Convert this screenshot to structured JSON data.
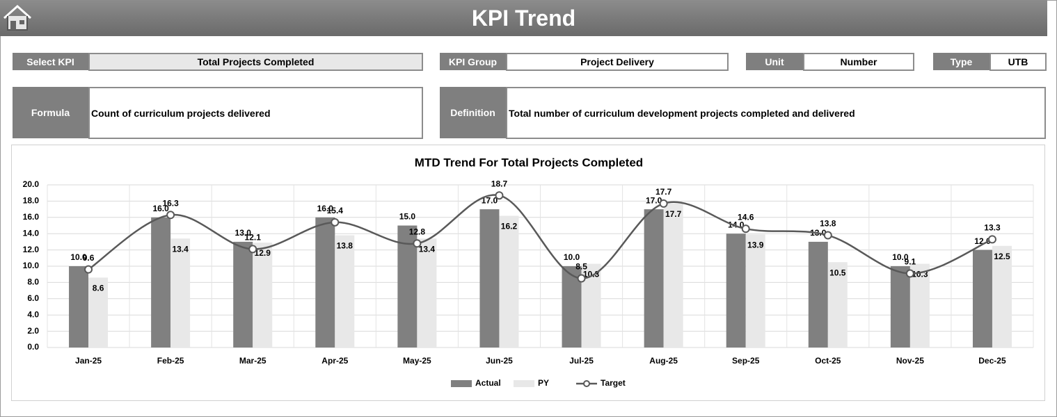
{
  "header": {
    "title": "KPI Trend"
  },
  "fields": [
    {
      "label": "Select KPI",
      "value": "Total Projects Completed"
    },
    {
      "label": "KPI Group",
      "value": "Project Delivery"
    },
    {
      "label": "Unit",
      "value": "Number"
    },
    {
      "label": "Type",
      "value": "UTB"
    }
  ],
  "details": [
    {
      "label": "Formula",
      "value": "Count of curriculum projects delivered"
    },
    {
      "label": "Definition",
      "value": "Total number of curriculum development projects completed and delivered"
    }
  ],
  "chart_data": {
    "type": "combo",
    "title": "MTD Trend For Total Projects Completed",
    "categories": [
      "Jan-25",
      "Feb-25",
      "Mar-25",
      "Apr-25",
      "May-25",
      "Jun-25",
      "Jul-25",
      "Aug-25",
      "Sep-25",
      "Oct-25",
      "Nov-25",
      "Dec-25"
    ],
    "series": [
      {
        "name": "Actual",
        "type": "bar",
        "color": "#808080",
        "values": [
          10,
          16,
          13,
          16,
          15,
          17,
          10,
          17,
          14,
          13,
          10,
          12
        ],
        "value_labels": [
          "10.0",
          "16.0",
          "13.0",
          "16.0",
          "15.0",
          "17.0",
          "10.0",
          "17.0",
          "14.0",
          "13.0",
          "10.0",
          "12.0"
        ]
      },
      {
        "name": "PY",
        "type": "bar",
        "color": "#e8e8e8",
        "values": [
          8.6,
          13.4,
          12.9,
          13.8,
          13.4,
          16.2,
          10.3,
          17.7,
          13.9,
          10.5,
          10.3,
          12.5
        ]
      },
      {
        "name": "Target",
        "type": "line",
        "color": "#595959",
        "values": [
          9.6,
          16.3,
          12.1,
          15.4,
          12.8,
          18.7,
          8.5,
          17.7,
          14.6,
          13.8,
          9.1,
          13.3
        ]
      }
    ],
    "ylim": [
      0,
      20
    ],
    "yticks": [
      {
        "value": 0,
        "label": "0.0"
      },
      {
        "value": 2,
        "label": "2.0"
      },
      {
        "value": 4,
        "label": "4.0"
      },
      {
        "value": 6,
        "label": "6.0"
      },
      {
        "value": 8,
        "label": "8.0"
      },
      {
        "value": 10,
        "label": "10.0"
      },
      {
        "value": 12,
        "label": "12.0"
      },
      {
        "value": 14,
        "label": "14.0"
      },
      {
        "value": 16,
        "label": "16.0"
      },
      {
        "value": 18,
        "label": "18.0"
      },
      {
        "value": 20,
        "label": "20.0"
      }
    ],
    "grid": true,
    "legend": "bottom"
  }
}
